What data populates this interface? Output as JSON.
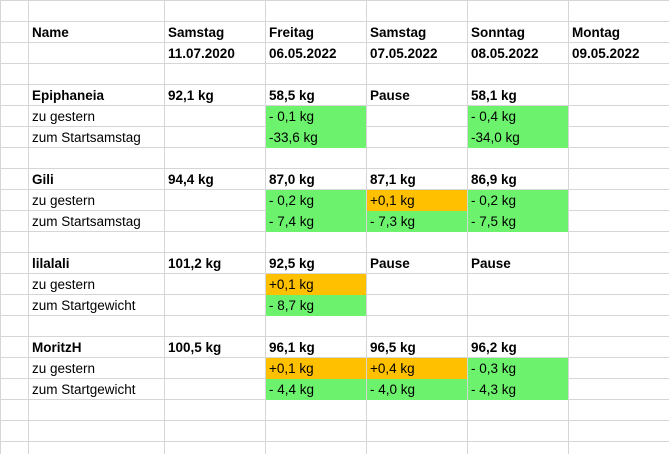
{
  "colors": {
    "green": "#6cf26c",
    "orange": "#ffc000",
    "grid": "#d6d6d6"
  },
  "header": {
    "name": "Name",
    "days": [
      "Samstag",
      "Freitag",
      "Samstag",
      "Sonntag",
      "Montag"
    ],
    "dates": [
      "11.07.2020",
      "06.05.2022",
      "07.05.2022",
      "08.05.2022",
      "09.05.2022"
    ]
  },
  "people": [
    {
      "name": "Epiphaneia",
      "weights": [
        "92,1 kg",
        "58,5 kg",
        "Pause",
        "58,1 kg",
        ""
      ],
      "diff_label": "zu gestern",
      "diff": [
        "",
        "- 0,1 kg",
        "",
        "- 0,4 kg",
        ""
      ],
      "diff_colors": [
        "",
        "green",
        "",
        "green",
        ""
      ],
      "start_label": "zum Startsamstag",
      "start": [
        "",
        "-33,6 kg",
        "",
        "-34,0 kg",
        ""
      ],
      "start_colors": [
        "",
        "green",
        "",
        "green",
        ""
      ]
    },
    {
      "name": "Gili",
      "weights": [
        "94,4 kg",
        "87,0 kg",
        "87,1 kg",
        "86,9 kg",
        ""
      ],
      "diff_label": "zu gestern",
      "diff": [
        "",
        "- 0,2 kg",
        "+0,1 kg",
        "- 0,2 kg",
        ""
      ],
      "diff_colors": [
        "",
        "green",
        "orange",
        "green",
        ""
      ],
      "start_label": "zum Startsamstag",
      "start": [
        "",
        "- 7,4 kg",
        "- 7,3 kg",
        "- 7,5 kg",
        ""
      ],
      "start_colors": [
        "",
        "green",
        "green",
        "green",
        ""
      ]
    },
    {
      "name": "lilalali",
      "weights": [
        "101,2 kg",
        "92,5 kg",
        "Pause",
        "Pause",
        ""
      ],
      "diff_label": "zu gestern",
      "diff": [
        "",
        "+0,1 kg",
        "",
        "",
        ""
      ],
      "diff_colors": [
        "",
        "orange",
        "",
        "",
        ""
      ],
      "start_label": "zum Startgewicht",
      "start": [
        "",
        "- 8,7 kg",
        "",
        "",
        ""
      ],
      "start_colors": [
        "",
        "green",
        "",
        "",
        ""
      ]
    },
    {
      "name": "MoritzH",
      "weights": [
        "100,5 kg",
        "96,1 kg",
        "96,5 kg",
        "96,2 kg",
        ""
      ],
      "diff_label": "zu gestern",
      "diff": [
        "",
        "+0,1 kg",
        "+0,4 kg",
        " - 0,3 kg",
        ""
      ],
      "diff_colors": [
        "",
        "orange",
        "orange",
        "green",
        ""
      ],
      "start_label": "zum Startgewicht",
      "start": [
        "",
        "- 4,4 kg",
        "- 4,0 kg",
        " - 4,3 kg",
        ""
      ],
      "start_colors": [
        "",
        "green",
        "green",
        "green",
        ""
      ]
    }
  ]
}
